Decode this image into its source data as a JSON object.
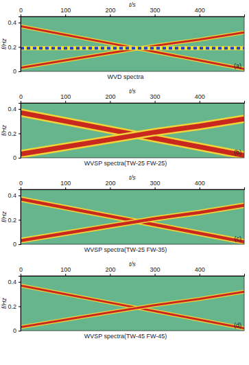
{
  "chart_data": [
    {
      "type": "line",
      "title": "WVD spectra",
      "xlabel": "t/s",
      "ylabel": "f/Hz",
      "annotation": "(a)",
      "xlim": [
        0,
        500
      ],
      "ylim": [
        0,
        0.45
      ],
      "xticks": [
        0,
        100,
        200,
        300,
        400
      ],
      "yticks": [
        0,
        0.2,
        0.4
      ],
      "line_style": "thin",
      "x": [
        0,
        100,
        200,
        300,
        400,
        500
      ],
      "series": [
        {
          "color": "#c8281e",
          "values": [
            0.37,
            0.3,
            0.23,
            0.16,
            0.09,
            0.02
          ]
        },
        {
          "color": "#c8281e",
          "values": [
            0.03,
            0.09,
            0.15,
            0.21,
            0.26,
            0.32
          ]
        },
        {
          "color": "#2b3fc4",
          "line_style": "dashed",
          "values": [
            0.19,
            0.19,
            0.19,
            0.19,
            0.19,
            0.19
          ]
        }
      ]
    },
    {
      "type": "line",
      "title": "WVSP spectra(TW-25 FW-25)",
      "xlabel": "t/s",
      "ylabel": "f/Hz",
      "annotation": "(b)",
      "xlim": [
        0,
        500
      ],
      "ylim": [
        0,
        0.45
      ],
      "xticks": [
        0,
        100,
        200,
        300,
        400
      ],
      "yticks": [
        0,
        0.2,
        0.4
      ],
      "line_style": "thick",
      "x": [
        0,
        100,
        200,
        300,
        400,
        500
      ],
      "series": [
        {
          "color": "#c8281e",
          "values": [
            0.37,
            0.3,
            0.23,
            0.16,
            0.09,
            0.02
          ]
        },
        {
          "color": "#c8281e",
          "values": [
            0.03,
            0.09,
            0.15,
            0.21,
            0.26,
            0.32
          ]
        }
      ]
    },
    {
      "type": "line",
      "title": "WVSP spectra(TW-25 FW-35)",
      "xlabel": "t/s",
      "ylabel": "f/Hz",
      "annotation": "(c)",
      "xlim": [
        0,
        500
      ],
      "ylim": [
        0,
        0.45
      ],
      "xticks": [
        0,
        100,
        200,
        300,
        400
      ],
      "yticks": [
        0,
        0.2,
        0.4
      ],
      "line_style": "medium",
      "x": [
        0,
        100,
        200,
        300,
        400,
        500
      ],
      "series": [
        {
          "color": "#c8281e",
          "values": [
            0.37,
            0.3,
            0.23,
            0.16,
            0.09,
            0.02
          ]
        },
        {
          "color": "#c8281e",
          "values": [
            0.03,
            0.09,
            0.15,
            0.21,
            0.26,
            0.32
          ]
        }
      ]
    },
    {
      "type": "line",
      "title": "WVSP spectra(TW-45 FW-45)",
      "xlabel": "t/s",
      "ylabel": "f/Hz",
      "annotation": "(d)",
      "xlim": [
        0,
        500
      ],
      "ylim": [
        0,
        0.45
      ],
      "xticks": [
        0,
        100,
        200,
        300,
        400
      ],
      "yticks": [
        0,
        0.2,
        0.4
      ],
      "line_style": "thin",
      "x": [
        0,
        100,
        200,
        300,
        400,
        500
      ],
      "series": [
        {
          "color": "#c8281e",
          "values": [
            0.37,
            0.3,
            0.23,
            0.16,
            0.09,
            0.02
          ]
        },
        {
          "color": "#c8281e",
          "values": [
            0.03,
            0.09,
            0.15,
            0.21,
            0.26,
            0.32
          ]
        }
      ]
    }
  ]
}
